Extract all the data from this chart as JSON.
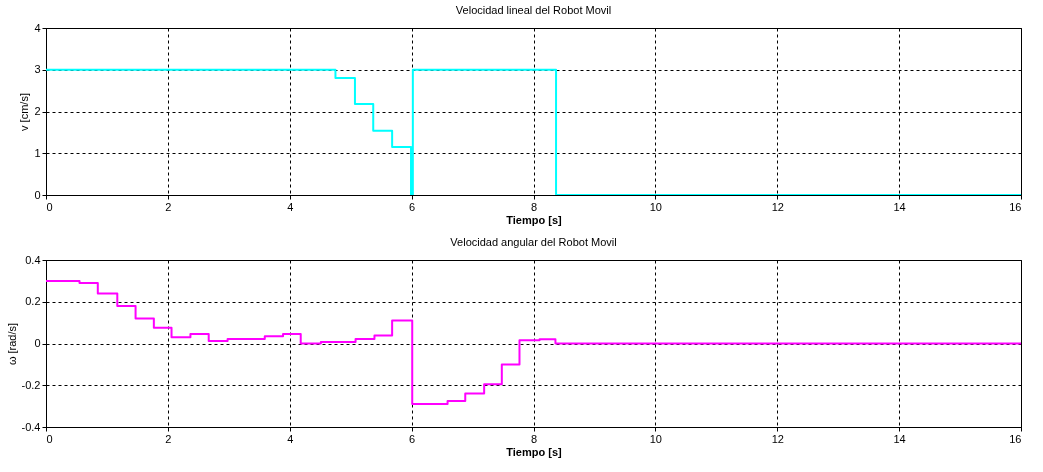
{
  "chart_data": [
    {
      "type": "step",
      "title": "Velocidad lineal del Robot Movil",
      "xlabel": "Tiempo [s]",
      "ylabel": "v  [cm/s]",
      "x": [
        0,
        4.75,
        5.07,
        5.37,
        5.68,
        5.99,
        6.02,
        8.37,
        16
      ],
      "series": [
        {
          "color": "#00ffff",
          "values": [
            3,
            2.8,
            2.18,
            1.54,
            1.15,
            0,
            3,
            0,
            0
          ]
        }
      ],
      "xlim": [
        0,
        16
      ],
      "ylim": [
        0,
        4
      ],
      "xticks": [
        0,
        2,
        4,
        6,
        8,
        10,
        12,
        14,
        16
      ],
      "yticks": [
        0,
        1,
        2,
        3,
        4
      ],
      "grid": true
    },
    {
      "type": "step",
      "title": "Velocidad angular del Robot Movil",
      "xlabel": "Tiempo [s]",
      "ylabel": "ω  [rad/s]",
      "x": [
        0,
        0.55,
        0.85,
        1.17,
        1.47,
        1.77,
        2.06,
        2.37,
        2.67,
        2.98,
        3.59,
        3.89,
        4.18,
        4.51,
        5.08,
        5.39,
        5.68,
        6.01,
        6.59,
        6.88,
        7.19,
        7.48,
        7.77,
        8.1,
        8.36,
        16
      ],
      "series": [
        {
          "color": "#ff00ff",
          "values": [
            0.3,
            0.29,
            0.24,
            0.18,
            0.12,
            0.075,
            0.03,
            0.045,
            0.012,
            0.022,
            0.035,
            0.045,
            0.0,
            0.007,
            0.022,
            0.038,
            0.11,
            -0.29,
            -0.275,
            -0.24,
            -0.195,
            -0.1,
            0.016,
            0.02,
            0,
            0
          ]
        }
      ],
      "xlim": [
        0,
        16
      ],
      "ylim": [
        -0.4,
        0.4
      ],
      "xticks": [
        0,
        2,
        4,
        6,
        8,
        10,
        12,
        14,
        16
      ],
      "yticks": [
        -0.4,
        -0.2,
        0,
        0.2,
        0.4
      ],
      "grid": true
    }
  ]
}
